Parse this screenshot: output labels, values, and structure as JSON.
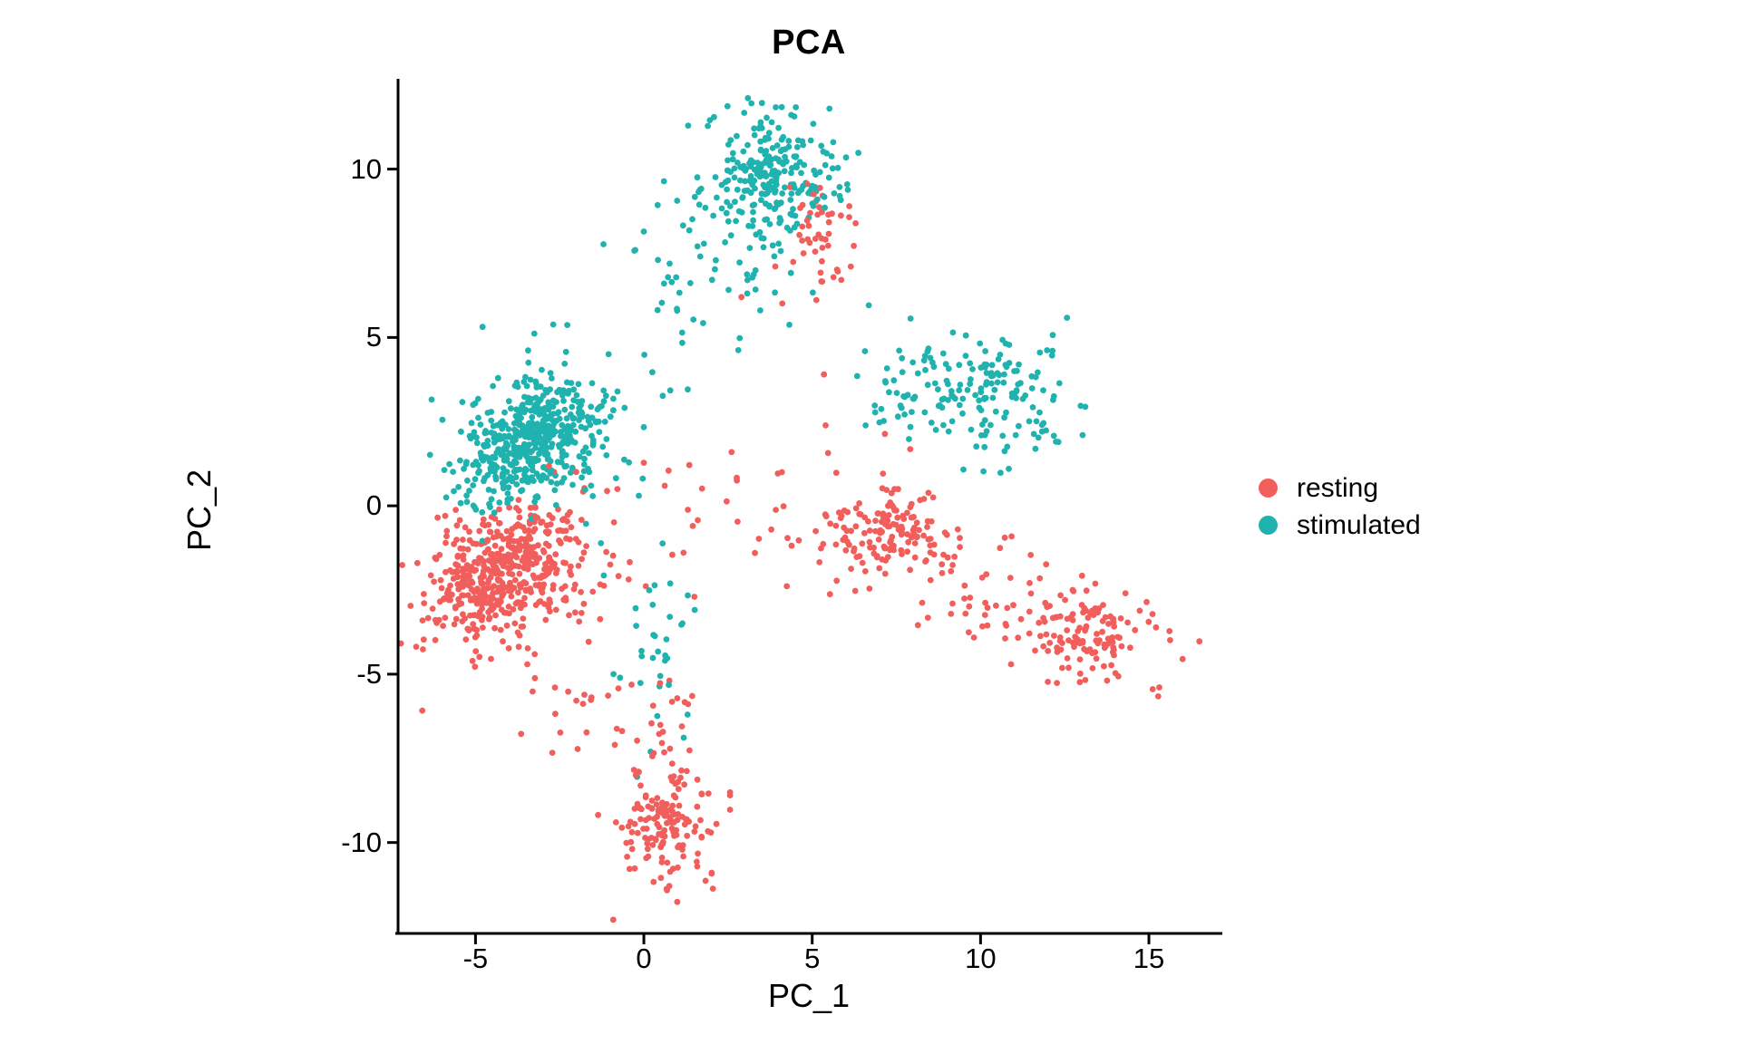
{
  "chart_data": {
    "type": "scatter",
    "title": "PCA",
    "xlabel": "PC_1",
    "ylabel": "PC_2",
    "xlim": [
      -7.3,
      17.1
    ],
    "ylim": [
      -12.7,
      12.6
    ],
    "x_ticks": [
      "-5",
      "0",
      "5",
      "10",
      "15"
    ],
    "y_ticks": [
      "-10",
      "-5",
      "0",
      "5",
      "10"
    ],
    "grid": false,
    "legend_position": "right",
    "point_radius_px": 3.4,
    "axis_color": "#000000",
    "seed": 11,
    "series": [
      {
        "name": "resting",
        "color": "#F15F5D",
        "clusters": [
          {
            "n": 430,
            "cx": -4.25,
            "cy": -1.95,
            "sdx": 1.15,
            "sdy": 0.8,
            "rot": 25
          },
          {
            "n": 90,
            "cx": -3.6,
            "cy": -2.3,
            "sdx": 1.9,
            "sdy": 1.4,
            "rot": 15
          },
          {
            "n": 150,
            "cx": 0.6,
            "cy": -9.5,
            "sdx": 0.7,
            "sdy": 1.0,
            "rot": 0
          },
          {
            "n": 22,
            "cx": 0.45,
            "cy": -6.4,
            "sdx": 0.6,
            "sdy": 1.1,
            "rot": 0
          },
          {
            "n": 115,
            "cx": 7.35,
            "cy": -0.6,
            "sdx": 0.8,
            "sdy": 0.6,
            "rot": 0
          },
          {
            "n": 55,
            "cx": 7.2,
            "cy": -1.0,
            "sdx": 1.7,
            "sdy": 1.1,
            "rot": -10
          },
          {
            "n": 125,
            "cx": 13.4,
            "cy": -3.95,
            "sdx": 1.1,
            "sdy": 0.65,
            "rot": -8
          },
          {
            "n": 42,
            "cx": 10.4,
            "cy": -2.7,
            "sdx": 1.6,
            "sdy": 0.75,
            "rot": -20
          },
          {
            "n": 48,
            "cx": 5.3,
            "cy": 7.9,
            "sdx": 0.7,
            "sdy": 0.9,
            "rot": 0
          },
          {
            "n": 18,
            "cx": -2.2,
            "cy": -6.4,
            "sdx": 1.0,
            "sdy": 0.8,
            "rot": 0
          },
          {
            "n": 16,
            "cx": 1.8,
            "cy": 0.3,
            "sdx": 1.5,
            "sdy": 0.9,
            "rot": 0
          }
        ],
        "extra_points": [
          [
            5.35,
            3.9
          ],
          [
            2.9,
            6.2
          ],
          [
            4.1,
            1.0
          ],
          [
            16.0,
            -4.55
          ],
          [
            6.1,
            8.9
          ],
          [
            -5.9,
            -0.3
          ],
          [
            1.5,
            -2.7
          ],
          [
            3.3,
            -1.4
          ]
        ]
      },
      {
        "name": "stimulated",
        "color": "#20B2AE",
        "clusters": [
          {
            "n": 460,
            "cx": -3.3,
            "cy": 1.95,
            "sdx": 1.1,
            "sdy": 0.75,
            "rot": 35
          },
          {
            "n": 90,
            "cx": -3.1,
            "cy": 2.1,
            "sdx": 1.7,
            "sdy": 1.3,
            "rot": 20
          },
          {
            "n": 235,
            "cx": 3.75,
            "cy": 9.9,
            "sdx": 0.95,
            "sdy": 0.85,
            "rot": 0
          },
          {
            "n": 55,
            "cx": 3.1,
            "cy": 8.0,
            "sdx": 1.25,
            "sdy": 1.2,
            "rot": 0
          },
          {
            "n": 150,
            "cx": 10.25,
            "cy": 3.4,
            "sdx": 1.35,
            "sdy": 0.85,
            "rot": -5
          },
          {
            "n": 35,
            "cx": 7.8,
            "cy": 3.3,
            "sdx": 1.2,
            "sdy": 0.9,
            "rot": 0
          },
          {
            "n": 30,
            "cx": 0.35,
            "cy": -3.6,
            "sdx": 0.55,
            "sdy": 1.4,
            "rot": 0
          },
          {
            "n": 24,
            "cx": 0.4,
            "cy": 5.3,
            "sdx": 1.4,
            "sdy": 1.1,
            "rot": 0
          }
        ],
        "extra_points": [
          [
            0.2,
            -7.3
          ],
          [
            -0.2,
            -8.05
          ],
          [
            1.3,
            -6.2
          ],
          [
            -0.9,
            -5.0
          ],
          [
            -0.15,
            0.3
          ],
          [
            0.6,
            6.6
          ]
        ]
      }
    ]
  }
}
